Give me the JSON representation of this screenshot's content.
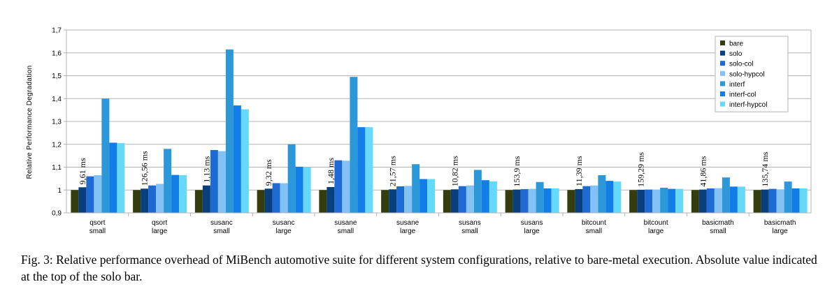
{
  "chart_data": {
    "type": "bar",
    "ylabel": "Relative Performance Degradation",
    "ylim": [
      0.9,
      1.7
    ],
    "yticks": [
      "0,9",
      "1",
      "1,1",
      "1,2",
      "1,3",
      "1,4",
      "1,5",
      "1,6",
      "1,7"
    ],
    "grid": true,
    "legend_position": "top-right",
    "categories": [
      [
        "qsort",
        "small"
      ],
      [
        "qsort",
        "large"
      ],
      [
        "susanc",
        "small"
      ],
      [
        "susanc",
        "large"
      ],
      [
        "susane",
        "small"
      ],
      [
        "susane",
        "large"
      ],
      [
        "susans",
        "small"
      ],
      [
        "susans",
        "large"
      ],
      [
        "bitcount",
        "small"
      ],
      [
        "bitcount",
        "large"
      ],
      [
        "basicmath",
        "small"
      ],
      [
        "basicmath",
        "large"
      ]
    ],
    "annotations": [
      "9,61 ms",
      "126,56 ms",
      "1,13 ms",
      "9,32 ms",
      "1,48 ms",
      "21,57 ms",
      "10,82 ms",
      "153,9 ms",
      "11,39 ms",
      "159,29 ms",
      "41,86 ms",
      "135,74 ms"
    ],
    "series": [
      {
        "name": "bare",
        "color": "#333d0e",
        "values": [
          1,
          1,
          1,
          1,
          1,
          1,
          1,
          1,
          1,
          1,
          1,
          1
        ]
      },
      {
        "name": "solo",
        "color": "#0a3f7d",
        "values": [
          1.012,
          1.006,
          1.02,
          1.006,
          1.013,
          1.003,
          1.003,
          1.002,
          1.004,
          1.001,
          1.002,
          1.002
        ]
      },
      {
        "name": "solo-col",
        "color": "#1d6ad2",
        "values": [
          1.06,
          1.02,
          1.175,
          1.03,
          1.13,
          1.016,
          1.017,
          1.004,
          1.017,
          1.002,
          1.007,
          1.005
        ]
      },
      {
        "name": "solo-hypcol",
        "color": "#84c1f5",
        "values": [
          1.065,
          1.027,
          1.17,
          1.03,
          1.128,
          1.018,
          1.02,
          1.005,
          1.02,
          1.002,
          1.008,
          1.003
        ]
      },
      {
        "name": "interf",
        "color": "#2c97d9",
        "values": [
          1.4,
          1.18,
          1.615,
          1.2,
          1.495,
          1.113,
          1.088,
          1.035,
          1.065,
          1.01,
          1.055,
          1.037
        ]
      },
      {
        "name": "interf-col",
        "color": "#127de6",
        "values": [
          1.207,
          1.066,
          1.37,
          1.102,
          1.275,
          1.048,
          1.043,
          1.007,
          1.04,
          1.005,
          1.015,
          1.007
        ]
      },
      {
        "name": "interf-hypcol",
        "color": "#66d9fb",
        "values": [
          1.205,
          1.065,
          1.353,
          1.1,
          1.275,
          1.048,
          1.038,
          1.007,
          1.037,
          1.005,
          1.015,
          1.007
        ]
      }
    ]
  },
  "caption": {
    "text": "Fig. 3: Relative performance overhead of MiBench automotive suite for different system configurations, relative to bare-metal execution. Absolute value indicated at the top of the solo bar."
  }
}
